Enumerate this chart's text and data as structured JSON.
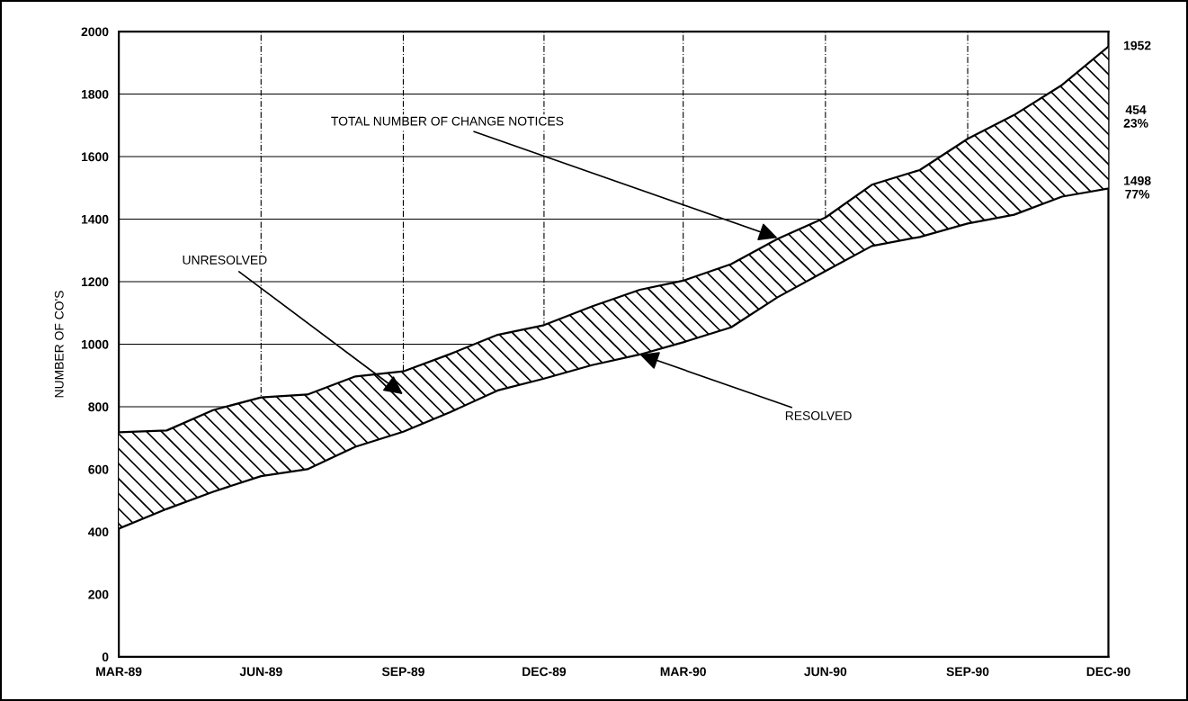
{
  "chart_data": {
    "type": "area",
    "stacked": true,
    "ylabel": "NUMBER OF CO'S",
    "x": [
      "1989-03",
      "1989-04",
      "1989-05",
      "1989-06",
      "1989-07",
      "1989-08",
      "1989-09",
      "1989-10",
      "1989-11",
      "1989-12",
      "1990-01",
      "1990-02",
      "1990-03",
      "1990-04",
      "1990-05",
      "1990-06",
      "1990-07",
      "1990-08",
      "1990-09",
      "1990-10",
      "1990-11",
      "1990-12"
    ],
    "series": [
      {
        "color": "#000000",
        "values": [
          410,
          473,
          528,
          578,
          600,
          672,
          720,
          782,
          852,
          890,
          933,
          967,
          1006,
          1054,
          1150,
          1234,
          1314,
          1343,
          1386,
          1414,
          1472,
          1498
        ]
      },
      {
        "color": "#000000",
        "values": [
          308,
          251,
          261,
          252,
          239,
          225,
          193,
          186,
          178,
          171,
          188,
          207,
          197,
          202,
          187,
          171,
          196,
          214,
          271,
          319,
          357,
          454
        ]
      }
    ],
    "xlim": [
      "1989-03",
      "1990-12"
    ],
    "xticks": [
      {
        "value": "1989-03",
        "label": "MAR-89"
      },
      {
        "value": "1989-06",
        "label": "JUN-89"
      },
      {
        "value": "1989-09",
        "label": "SEP-89"
      },
      {
        "value": "1989-12",
        "label": "DEC-89"
      },
      {
        "value": "1990-03",
        "label": "MAR-90"
      },
      {
        "value": "1990-06",
        "label": "JUN-90"
      },
      {
        "value": "1990-09",
        "label": "SEP-90"
      },
      {
        "value": "1990-12",
        "label": "DEC-90"
      }
    ],
    "ylim": [
      0,
      2000
    ],
    "yticks": [
      0,
      200,
      400,
      600,
      800,
      1000,
      1200,
      1400,
      1600,
      1800,
      2000
    ],
    "grid": true,
    "annotations": [
      {
        "text": "TOTAL NUMBER OF CHANGE NOTICES",
        "x": "1990-05",
        "y": 1340
      },
      "UNRESOLVED",
      {
        "text": "RESOLVED",
        "x": "1990-02",
        "y": 967
      },
      {
        "text": "1952",
        "x": "1990-12",
        "y": 1952
      },
      {
        "text": "454\n23%",
        "x": "1990-12",
        "y": 1725
      },
      {
        "text": "1498\n77%",
        "x": "1990-12",
        "y": 1498
      }
    ]
  }
}
